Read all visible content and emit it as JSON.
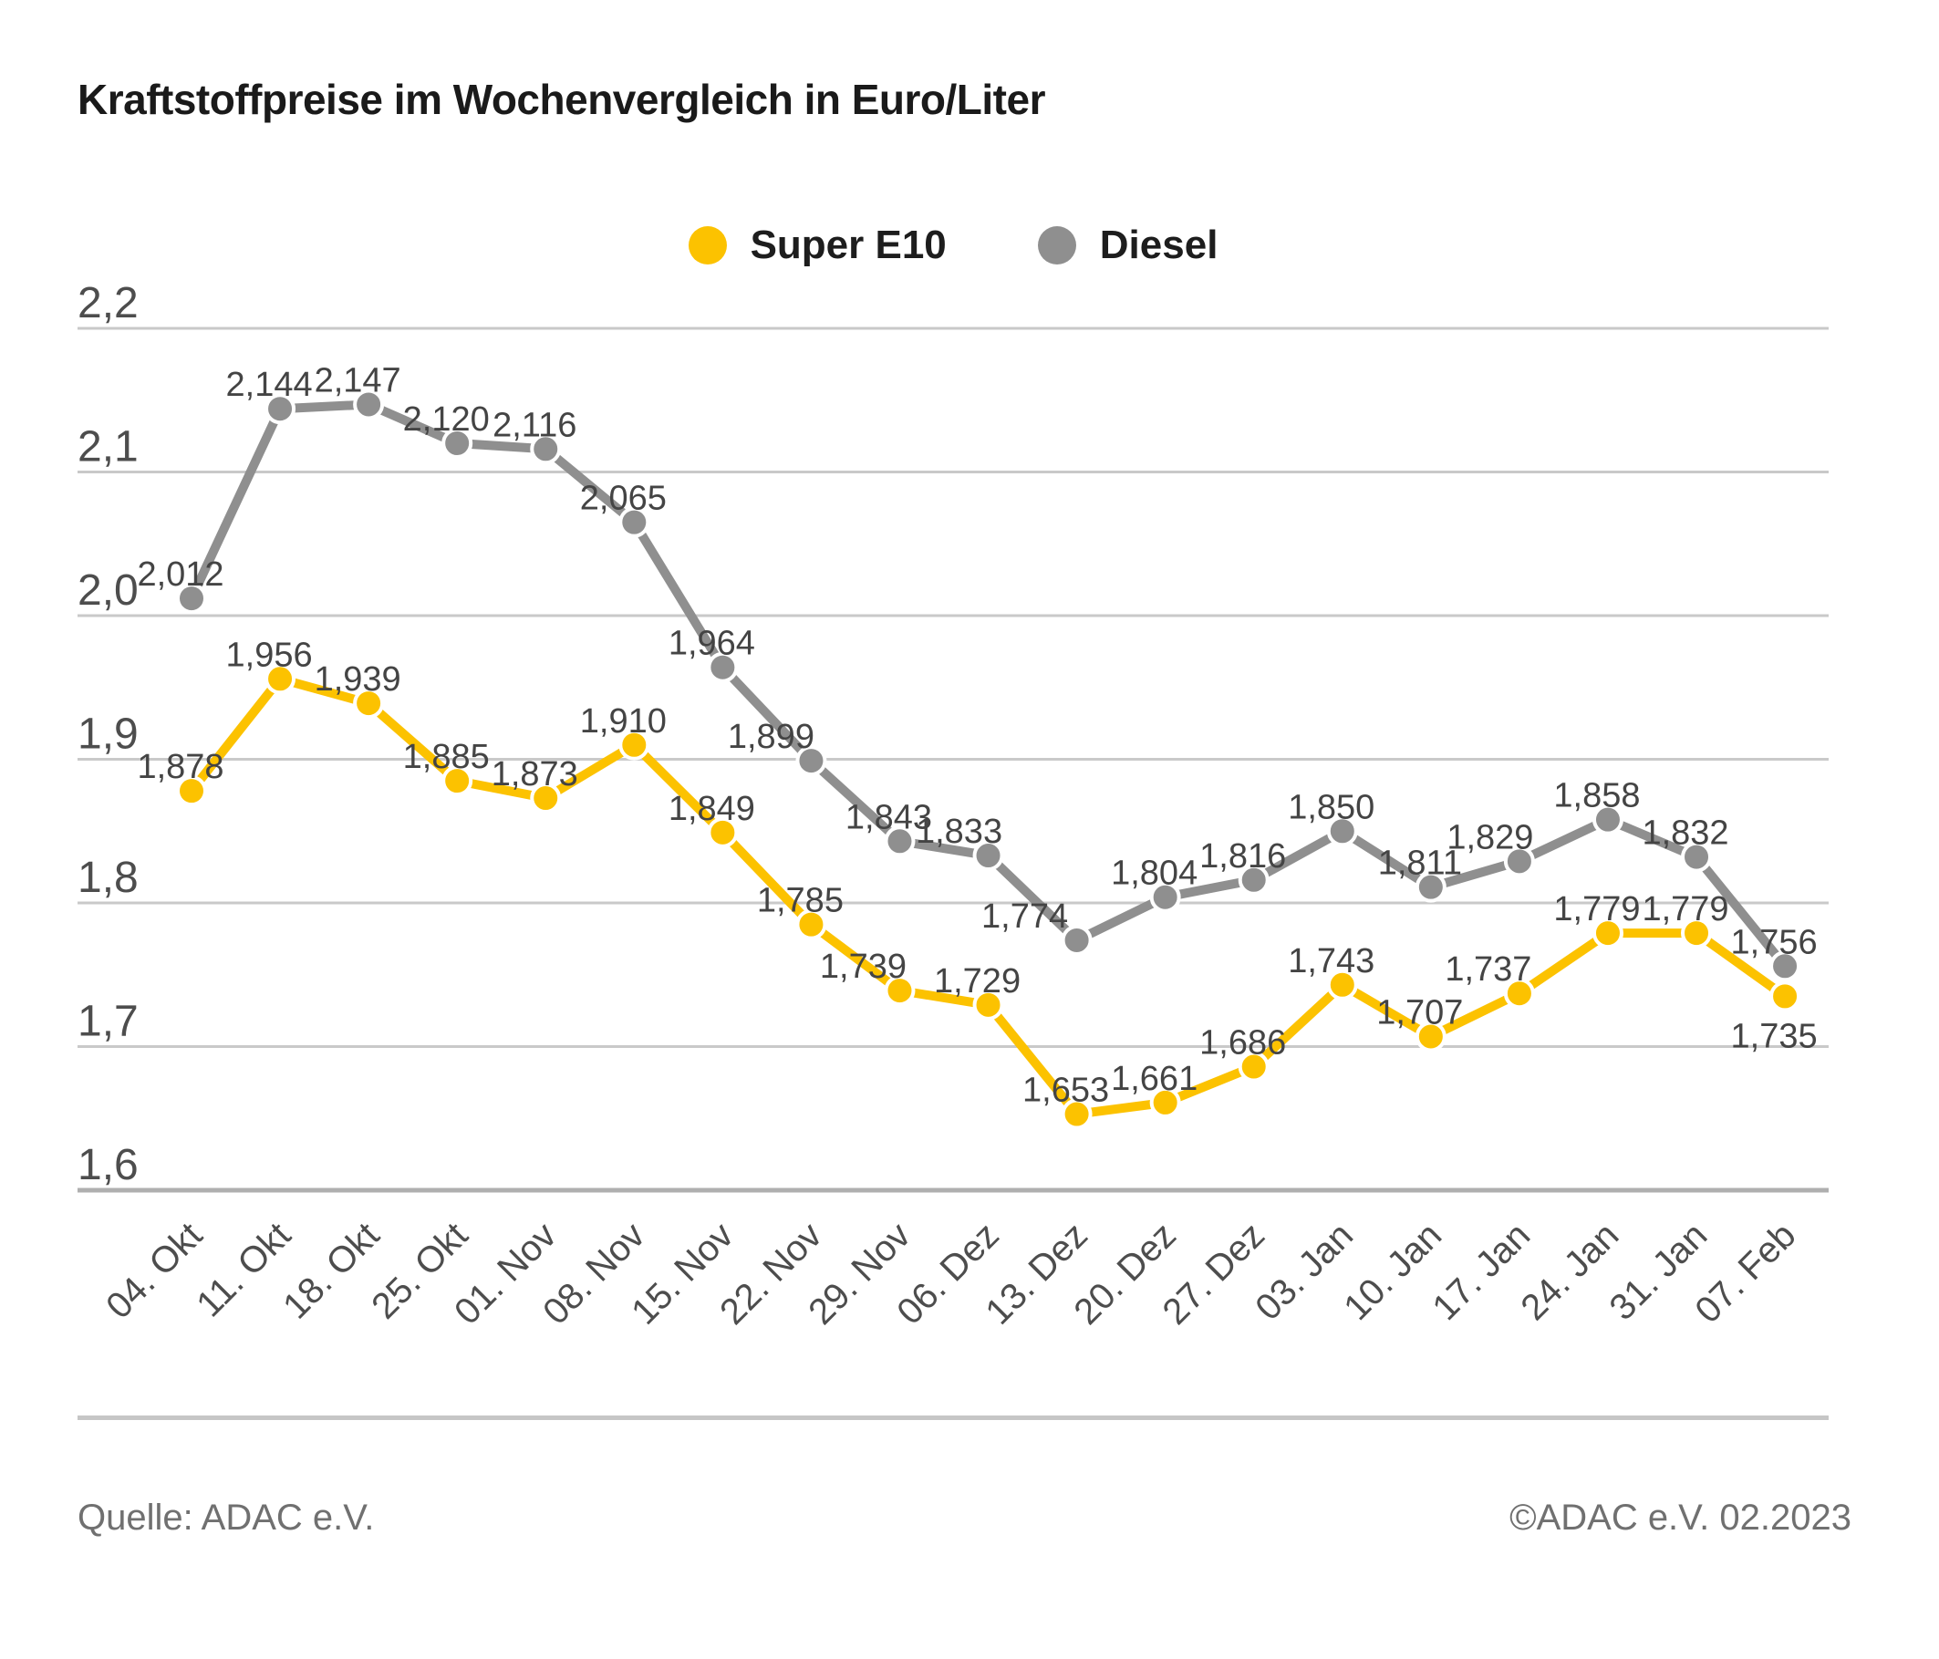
{
  "title": "Kraftstoffpreise im Wochenvergleich in Euro/Liter",
  "legend": {
    "items": [
      {
        "label": "Super E10",
        "color": "#FCC200"
      },
      {
        "label": "Diesel",
        "color": "#8F8F8F"
      }
    ]
  },
  "chart_data": {
    "type": "line",
    "title": "Kraftstoffpreise im Wochenvergleich in Euro/Liter",
    "categories": [
      "04. Okt",
      "11. Okt",
      "18. Okt",
      "25. Okt",
      "01. Nov",
      "08. Nov",
      "15. Nov",
      "22. Nov",
      "29. Nov",
      "06. Dez",
      "13. Dez",
      "20. Dez",
      "27. Dez",
      "03. Jan",
      "10. Jan",
      "17. Jan",
      "24. Jan",
      "31. Jan",
      "07. Feb"
    ],
    "series": [
      {
        "name": "Super E10",
        "color": "#FCC200",
        "values": [
          1.878,
          1.956,
          1.939,
          1.885,
          1.873,
          1.91,
          1.849,
          1.785,
          1.739,
          1.729,
          1.653,
          1.661,
          1.686,
          1.743,
          1.707,
          1.737,
          1.779,
          1.779,
          1.735
        ],
        "labels": [
          "1,878",
          "1,956",
          "1,939",
          "1,885",
          "1,873",
          "1,910",
          "1,849",
          "1,785",
          "1,739",
          "1,729",
          "1,653",
          "1,661",
          "1,686",
          "1,743",
          "1,707",
          "1,737",
          "1,779",
          "1,779",
          "1,735"
        ],
        "label_below_indices": [
          18
        ],
        "label_dx": {
          "8": -28,
          "15": -22
        }
      },
      {
        "name": "Diesel",
        "color": "#8F8F8F",
        "values": [
          2.012,
          2.144,
          2.147,
          2.12,
          2.116,
          2.065,
          1.964,
          1.899,
          1.843,
          1.833,
          1.774,
          1.804,
          1.816,
          1.85,
          1.811,
          1.829,
          1.858,
          1.832,
          1.756
        ],
        "labels": [
          "2,012",
          "2,144",
          "2,147",
          "2,120",
          "2,116",
          "2,065",
          "1,964",
          "1,899",
          "1,843",
          "1,833",
          "1,774",
          "1,804",
          "1,816",
          "1,850",
          "1,811",
          "1,829",
          "1,858",
          "1,832",
          "1,756"
        ],
        "label_below_indices": [],
        "label_dx": {
          "7": -32,
          "9": -20,
          "10": -45,
          "15": -20
        }
      }
    ],
    "y_axis": {
      "min": 1.6,
      "max": 2.2,
      "step": 0.1,
      "tick_labels": [
        "2,2",
        "2,1",
        "2,0",
        "1,9",
        "1,8",
        "1,7",
        "1,6"
      ]
    },
    "x_axis": {
      "label_rotation": -45
    },
    "grid": true,
    "legend_position": "top-center",
    "marker": "circle"
  },
  "footer": {
    "source": "Quelle: ADAC e.V.",
    "copyright": "©ADAC e.V. 02.2023"
  },
  "colors": {
    "super_e10": "#FCC200",
    "diesel": "#8F8F8F",
    "grid": "#C9C9C9",
    "axis_line": "#AFAFAF",
    "data_label": "#444444",
    "tick_label": "#4D4D4D",
    "footer_text": "#707070",
    "title": "#1A1A1A"
  }
}
